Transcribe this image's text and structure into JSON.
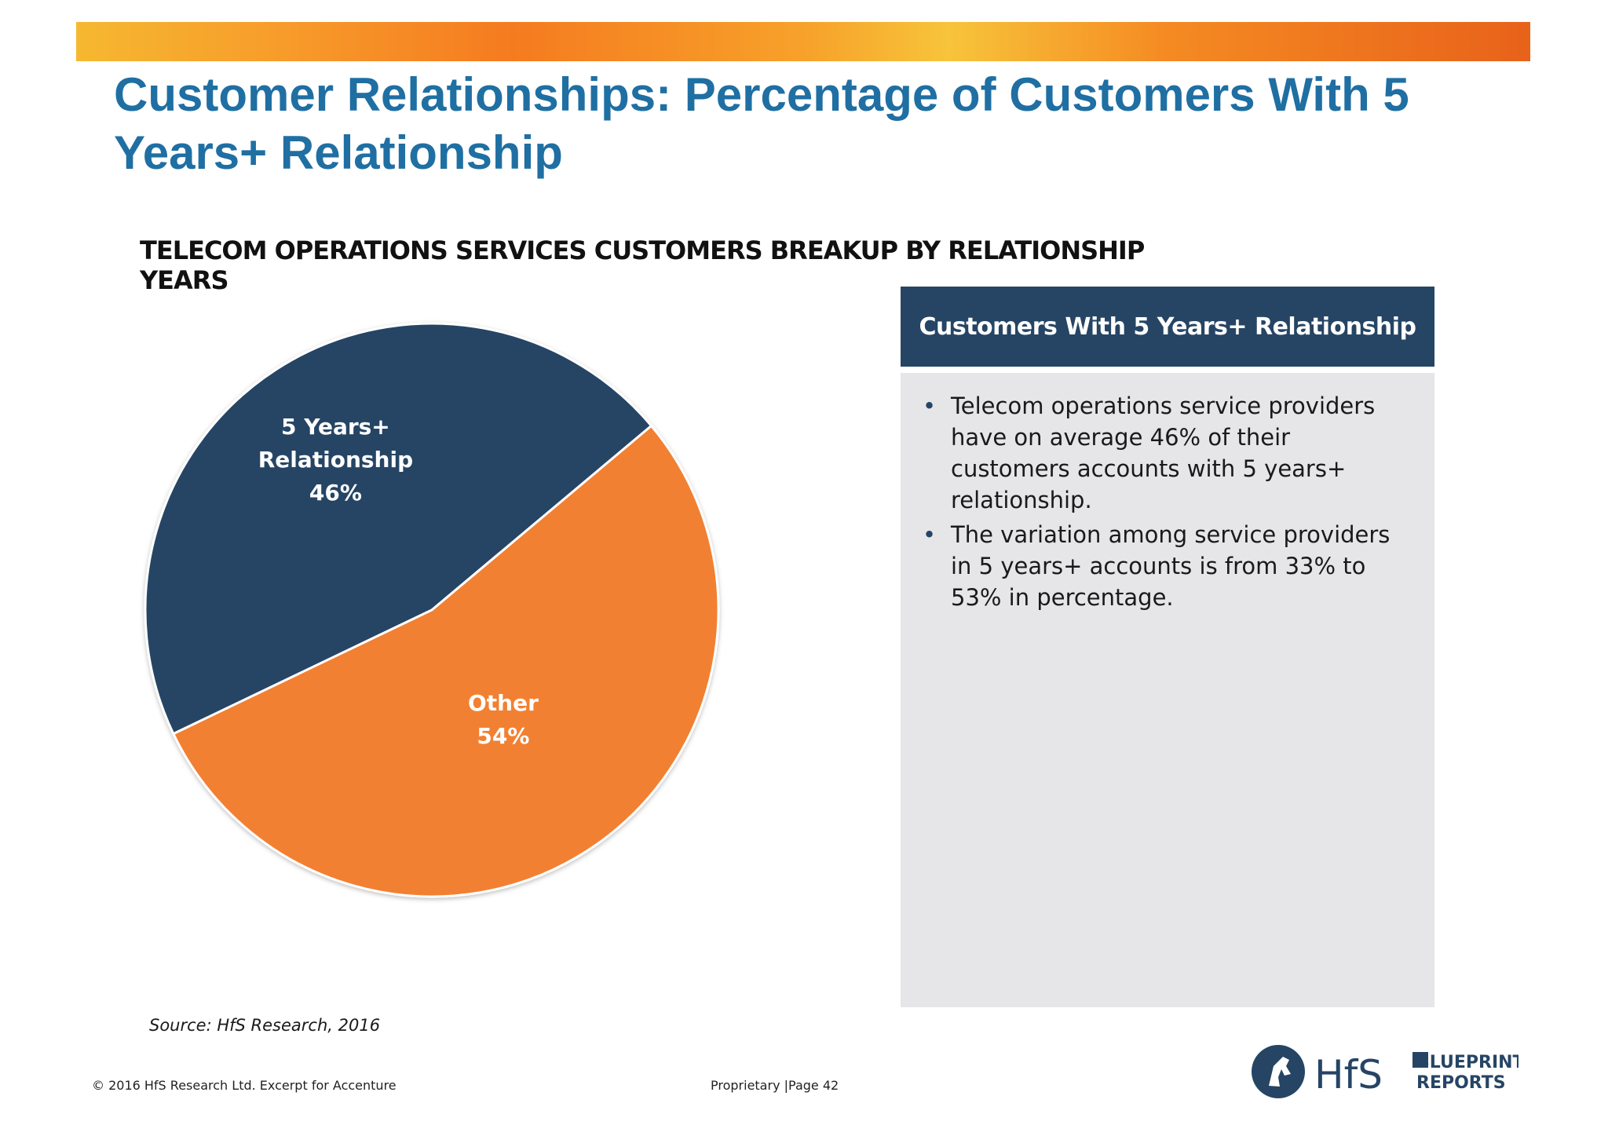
{
  "slide": {
    "title": "Customer Relationships: Percentage of Customers With 5 Years+ Relationship",
    "source": "Source: HfS Research, 2016",
    "copyright": "© 2016 HfS Research Ltd.   Excerpt  for Accenture",
    "page_info": "Proprietary  |Page 42"
  },
  "chart_data": {
    "type": "pie",
    "title": "TELECOM OPERATIONS SERVICES CUSTOMERS BREAKUP BY RELATIONSHIP YEARS",
    "slices": [
      {
        "label_line1": "5 Years+",
        "label_line2": "Relationship",
        "value": 46,
        "value_label": "46%",
        "color": "#264565"
      },
      {
        "label_line1": "Other",
        "label_line2": "",
        "value": 54,
        "value_label": "54%",
        "color": "#f28033"
      }
    ]
  },
  "panel": {
    "header": "Customers With 5 Years+ Relationship",
    "bullets": [
      "Telecom operations service providers have on average 46% of their customers accounts with 5 years+ relationship.",
      "The  variation among service providers in  5 years+ accounts  is from 33% to 53% in percentage."
    ]
  },
  "logo": {
    "brand": "HfS",
    "line1": "BLUEPRINT",
    "line2": "REPORTS",
    "colors": {
      "navy": "#264565"
    }
  },
  "theme": {
    "title_color": "#1f6fa3",
    "navy": "#264565",
    "orange": "#f28033",
    "panel_bg": "#e6e5e8"
  }
}
